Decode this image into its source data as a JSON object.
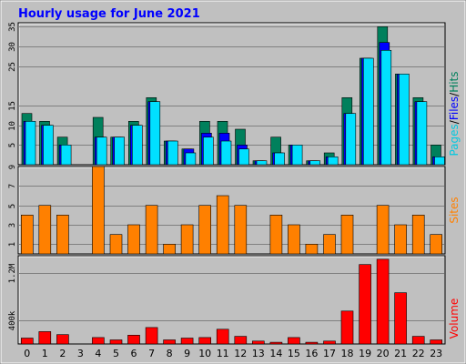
{
  "chart_data": [
    {
      "type": "bar",
      "title": "Hourly usage for June 2021",
      "categories": [
        "0",
        "1",
        "2",
        "3",
        "4",
        "5",
        "6",
        "7",
        "8",
        "9",
        "10",
        "11",
        "12",
        "13",
        "14",
        "15",
        "16",
        "17",
        "18",
        "19",
        "20",
        "21",
        "22",
        "23"
      ],
      "ylim": [
        0,
        36
      ],
      "y_ticks": [
        "5",
        "10",
        "15",
        "25",
        "30",
        "35"
      ],
      "right_label_parts": [
        "Pages",
        "/",
        "Files",
        "/",
        "Hits"
      ],
      "series": [
        {
          "name": "Hits",
          "color": "#00805c",
          "values": [
            13,
            11,
            7,
            0,
            12,
            7,
            11,
            17,
            6,
            4,
            11,
            11,
            9,
            1,
            7,
            5,
            1,
            3,
            17,
            27,
            35,
            23,
            17,
            5
          ]
        },
        {
          "name": "Files",
          "color": "#0000ff",
          "values": [
            11,
            10,
            5,
            0,
            7,
            7,
            10,
            16,
            6,
            4,
            8,
            8,
            5,
            1,
            3,
            5,
            1,
            2,
            13,
            27,
            31,
            23,
            16,
            2
          ]
        },
        {
          "name": "Pages",
          "color": "#00e0ff",
          "values": [
            11,
            10,
            5,
            0,
            7,
            7,
            10,
            16,
            6,
            3,
            7,
            6,
            4,
            1,
            3,
            5,
            1,
            2,
            13,
            27,
            29,
            23,
            16,
            2
          ]
        }
      ],
      "grid": true
    },
    {
      "type": "bar",
      "categories": [
        "0",
        "1",
        "2",
        "3",
        "4",
        "5",
        "6",
        "7",
        "8",
        "9",
        "10",
        "11",
        "12",
        "13",
        "14",
        "15",
        "16",
        "17",
        "18",
        "19",
        "20",
        "21",
        "22",
        "23"
      ],
      "ylim": [
        0,
        9
      ],
      "y_ticks": [
        "1",
        "3",
        "5",
        "7",
        "9"
      ],
      "right_label": "Sites",
      "series": [
        {
          "name": "Sites",
          "color": "#ff8000",
          "values": [
            4,
            5,
            4,
            0,
            9,
            2,
            3,
            5,
            1,
            3,
            5,
            6,
            5,
            0,
            4,
            3,
            1,
            2,
            4,
            0,
            5,
            3,
            4,
            2
          ]
        }
      ],
      "grid": true
    },
    {
      "type": "bar",
      "categories": [
        "0",
        "1",
        "2",
        "3",
        "4",
        "5",
        "6",
        "7",
        "8",
        "9",
        "10",
        "11",
        "12",
        "13",
        "14",
        "15",
        "16",
        "17",
        "18",
        "19",
        "20",
        "21",
        "22",
        "23"
      ],
      "ylim": [
        0,
        1500000
      ],
      "y_ticks": [
        "400k",
        "1.2M"
      ],
      "right_label": "Volume",
      "series": [
        {
          "name": "Volume",
          "color": "#ff0000",
          "values": [
            100000,
            210000,
            160000,
            0,
            110000,
            70000,
            150000,
            280000,
            70000,
            100000,
            110000,
            250000,
            130000,
            50000,
            30000,
            110000,
            30000,
            50000,
            560000,
            1350000,
            1440000,
            870000,
            130000,
            70000
          ]
        }
      ],
      "grid": true
    }
  ],
  "colors": {
    "background": "#c0c0c0",
    "plot_border": "#808080",
    "title": "#0000ff",
    "axis_text": "#000000",
    "sites_label": "#ff8000",
    "volume_label": "#ff0000"
  }
}
